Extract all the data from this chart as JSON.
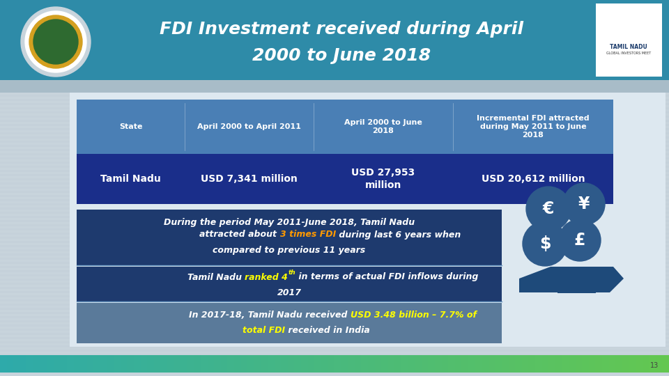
{
  "title_line1": "FDI Investment received during April",
  "title_line2": "2000 to June 2018",
  "title_color": "#ffffff",
  "title_bg": "#2e8ba8",
  "slide_bg": "#c8d4dc",
  "header_bg": "#4a7fb5",
  "header_text_color": "#ffffff",
  "row_bg": "#1a2e8a",
  "row_text_color": "#ffffff",
  "col_headers": [
    "State",
    "April 2000 to April 2011",
    "April 2000 to June\n2018",
    "Incremental FDI attracted\nduring May 2011 to June\n2018"
  ],
  "row_data": [
    "Tamil Nadu",
    "USD 7,341 million",
    "USD 27,953\nmillion",
    "USD 20,612 million"
  ],
  "box1_bg": "#1e3a6e",
  "box2_bg": "#1e3a6e",
  "box3_bg": "#5a7a9a",
  "box_text_color": "#ffffff",
  "bullet1_highlight_color": "#ff9900",
  "bullet2_highlight_color": "#ffff00",
  "bullet3_highlight_color": "#ffff00",
  "divider_color": "#6a9ac4",
  "coin_bg": "#2e5a8a",
  "hand_color": "#1e4a7a",
  "bottom_bar_color1": "#2eaacc",
  "bottom_bar_color2": "#44cc88",
  "page_num": "13"
}
